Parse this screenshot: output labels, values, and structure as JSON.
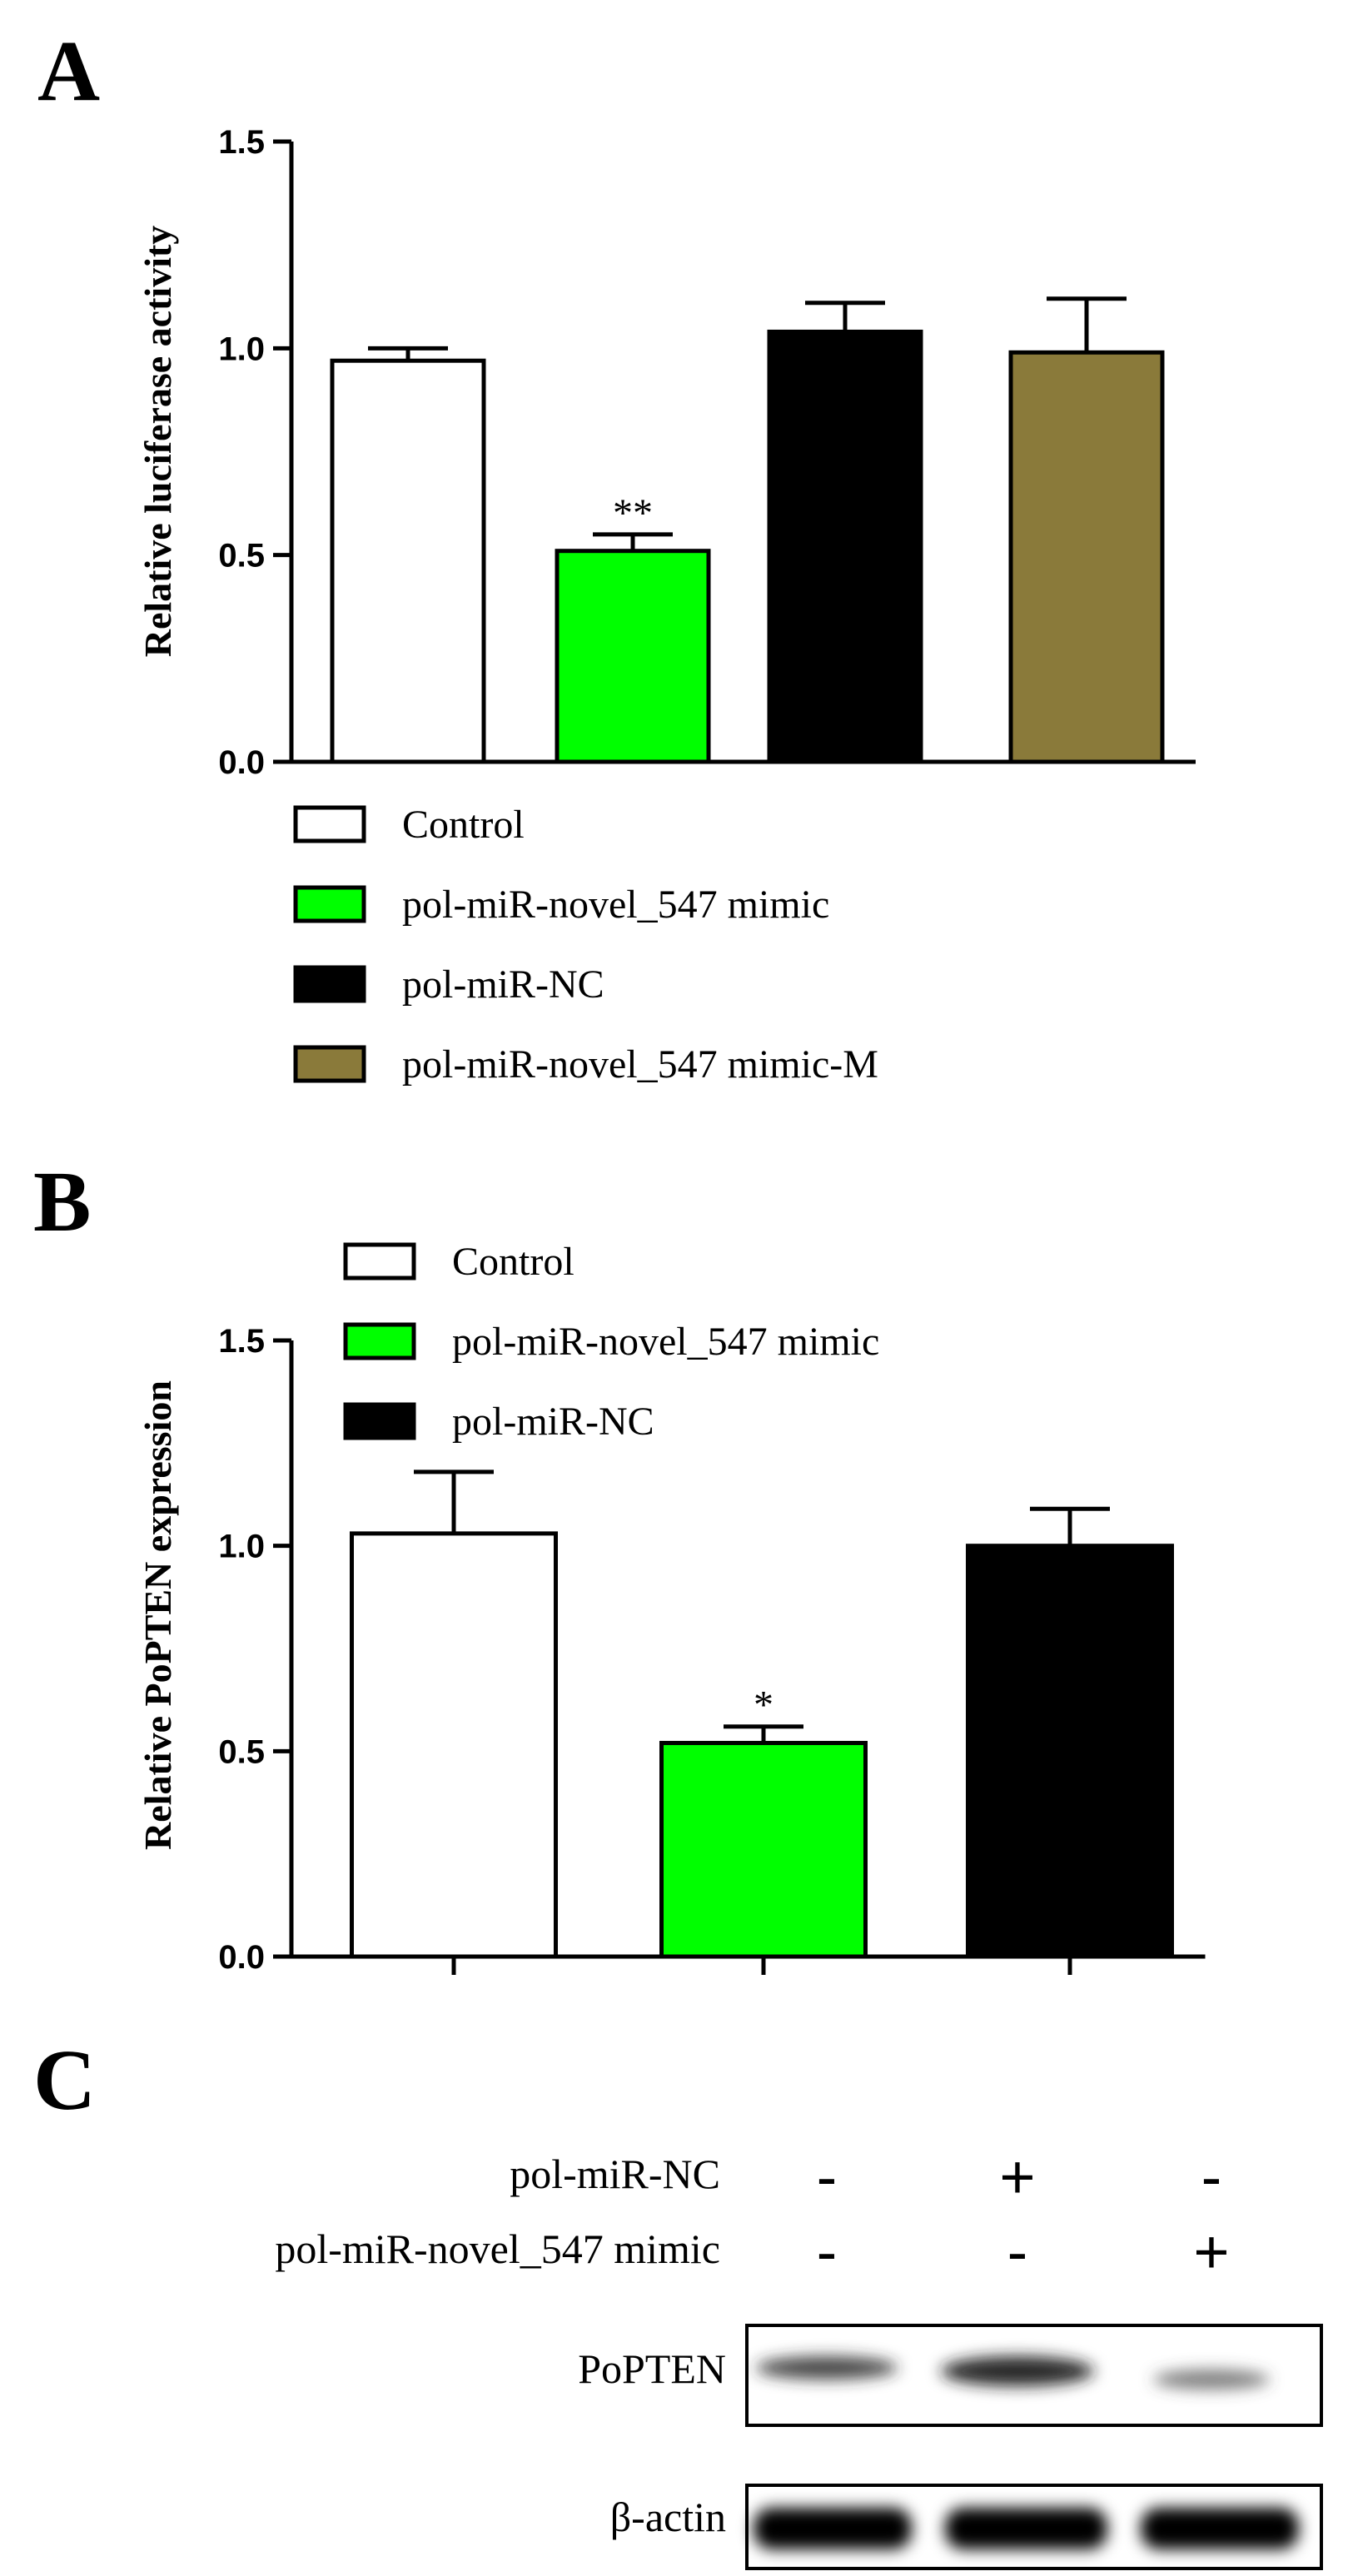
{
  "figure": {
    "panels": [
      "A",
      "B",
      "C"
    ]
  },
  "chart_data": [
    {
      "panel": "A",
      "type": "bar",
      "title": "",
      "xlabel": "",
      "ylabel": "Relative luciferase activity",
      "ylim": [
        0,
        1.5
      ],
      "yticks": [
        "0.0",
        "0.5",
        "1.0",
        "1.5"
      ],
      "categories": [
        "Control",
        "pol-miR-novel_547 mimic",
        "pol-miR-NC",
        "pol-miR-novel_547 mimic-M"
      ],
      "values": [
        0.97,
        0.51,
        1.04,
        0.99
      ],
      "errors": [
        0.03,
        0.04,
        0.07,
        0.13
      ],
      "colors": [
        "#ffffff",
        "#00ff00",
        "#000000",
        "#8a7a3a"
      ],
      "annotations": [
        "",
        "**",
        "",
        ""
      ],
      "legend": [
        "Control",
        "pol-miR-novel_547 mimic",
        "pol-miR-NC",
        "pol-miR-novel_547 mimic-M"
      ]
    },
    {
      "panel": "B",
      "type": "bar",
      "title": "",
      "xlabel": "",
      "ylabel": "Relative PoPTEN expression",
      "ylim": [
        0,
        1.5
      ],
      "yticks": [
        "0.0",
        "0.5",
        "1.0",
        "1.5"
      ],
      "categories": [
        "Control",
        "pol-miR-novel_547 mimic",
        "pol-miR-NC"
      ],
      "values": [
        1.03,
        0.52,
        1.0
      ],
      "errors": [
        0.15,
        0.04,
        0.09
      ],
      "colors": [
        "#ffffff",
        "#00ff00",
        "#000000"
      ],
      "annotations": [
        "",
        "*",
        ""
      ],
      "legend": [
        "Control",
        "pol-miR-novel_547 mimic",
        "pol-miR-NC"
      ]
    }
  ],
  "western_blot": {
    "panel": "C",
    "row_labels": [
      "pol-miR-NC",
      "pol-miR-novel_547 mimic"
    ],
    "conditions": [
      [
        "-",
        "+",
        "-"
      ],
      [
        "-",
        "-",
        "+"
      ]
    ],
    "bands": [
      "PoPTEN",
      "β-actin"
    ]
  }
}
